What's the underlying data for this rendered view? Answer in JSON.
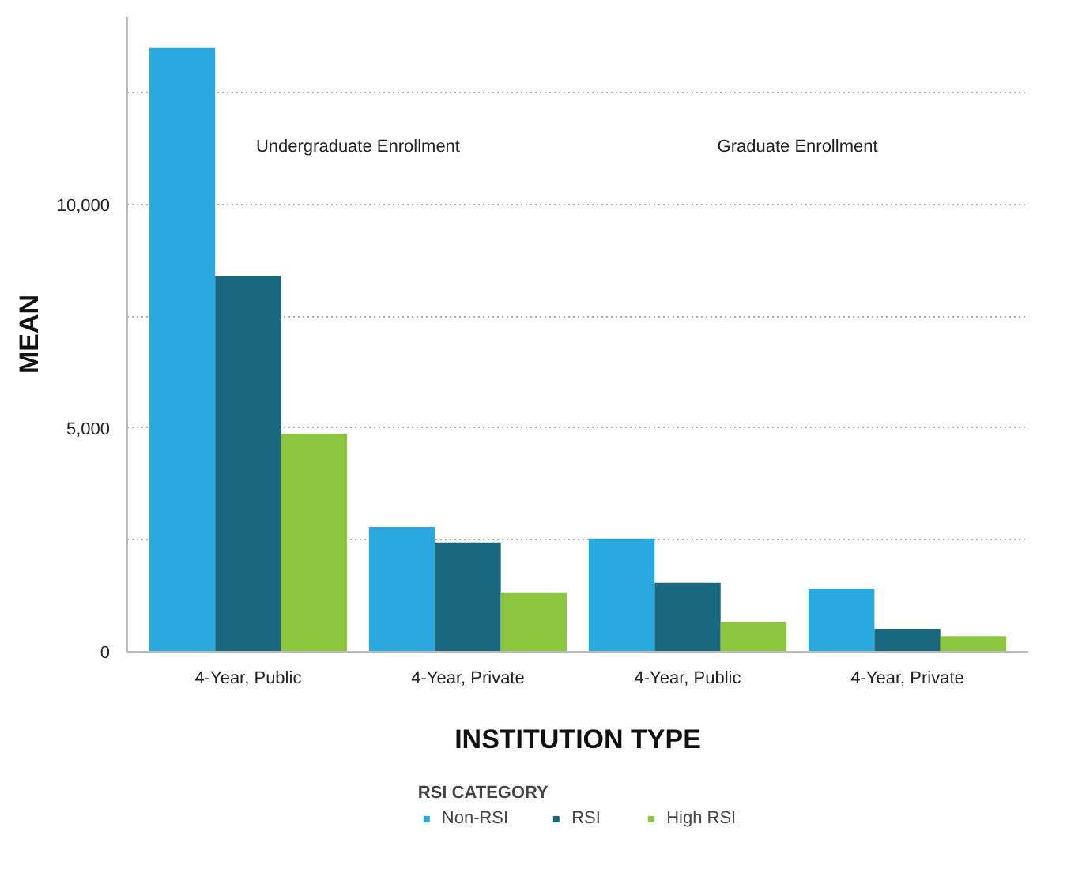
{
  "chart_data": {
    "type": "bar",
    "xlabel": "INSTITUTION TYPE",
    "ylabel": "MEAN",
    "legend_title": "RSI CATEGORY",
    "categories": [
      "4-Year, Public",
      "4-Year, Private",
      "4-Year, Public",
      "4-Year, Private"
    ],
    "series": [
      {
        "name": "Non-RSI",
        "color": "#29a9e0",
        "values": [
          13500,
          2790,
          2530,
          1410
        ]
      },
      {
        "name": "RSI",
        "color": "#1a6780",
        "values": [
          8400,
          2440,
          1540,
          510
        ]
      },
      {
        "name": "High RSI",
        "color": "#8cc63f",
        "values": [
          4870,
          1310,
          670,
          350
        ]
      }
    ],
    "annotations": [
      "Undergraduate Enrollment",
      "Graduate Enrollment"
    ],
    "ylim": [
      0,
      14200
    ],
    "yticks": [
      0,
      {
        "value": 2500,
        "label": null
      },
      {
        "value": 5000,
        "label": "5,000"
      },
      {
        "value": 7500,
        "label": null
      },
      {
        "value": 10000,
        "label": "10,000"
      },
      {
        "value": 12500,
        "label": null
      }
    ],
    "grid": "y",
    "legend": "bottom"
  }
}
